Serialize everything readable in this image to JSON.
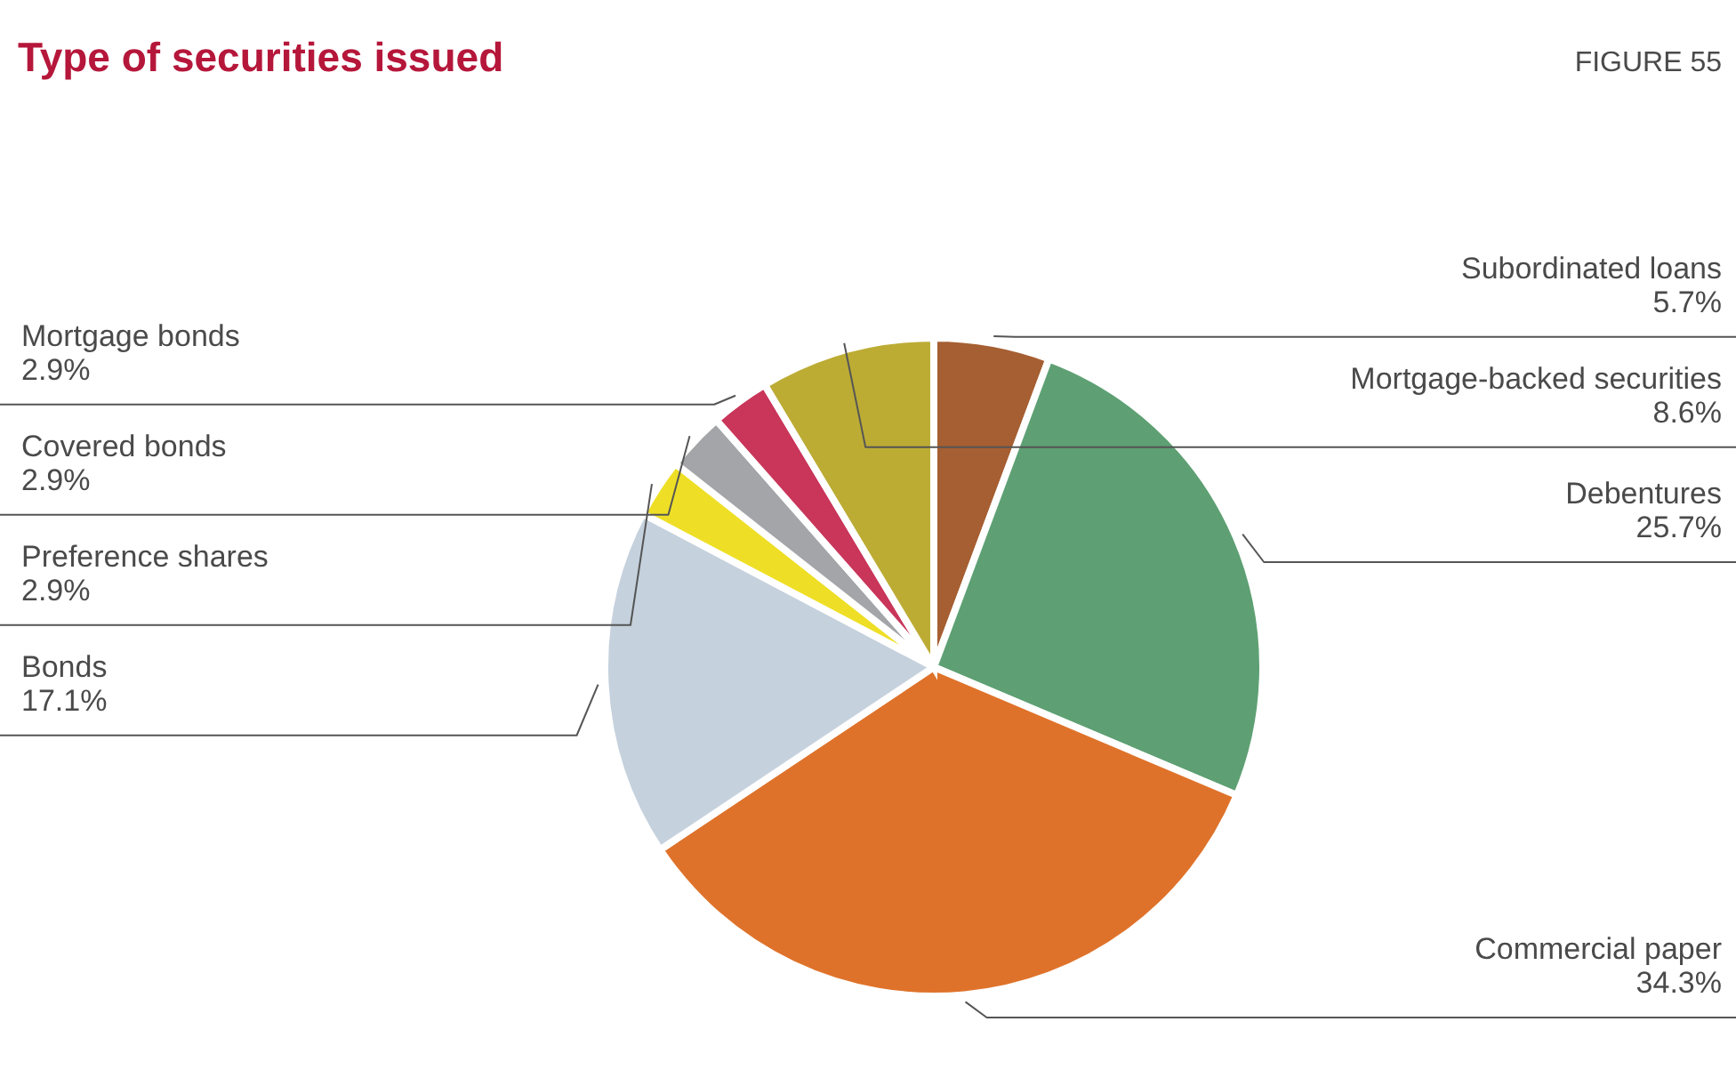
{
  "chart_data": {
    "type": "pie",
    "title": "Type of securities issued",
    "annotations": [
      "FIGURE 55"
    ],
    "categories": [
      "Subordinated loans",
      "Debentures",
      "Commercial paper",
      "Bonds",
      "Preference shares",
      "Covered bonds",
      "Mortgage bonds",
      "Mortgage-backed securities"
    ],
    "values": [
      5.7,
      25.7,
      34.3,
      17.1,
      2.9,
      2.9,
      2.9,
      8.6
    ],
    "value_labels": [
      "5.7%",
      "25.7%",
      "34.3%",
      "17.1%",
      "2.9%",
      "2.9%",
      "2.9%",
      "8.6%"
    ],
    "colors": [
      "#a65f32",
      "#5ea073",
      "#df722a",
      "#c5d1dd",
      "#eedf26",
      "#a3a5a8",
      "#c9365a",
      "#bcac34"
    ]
  }
}
